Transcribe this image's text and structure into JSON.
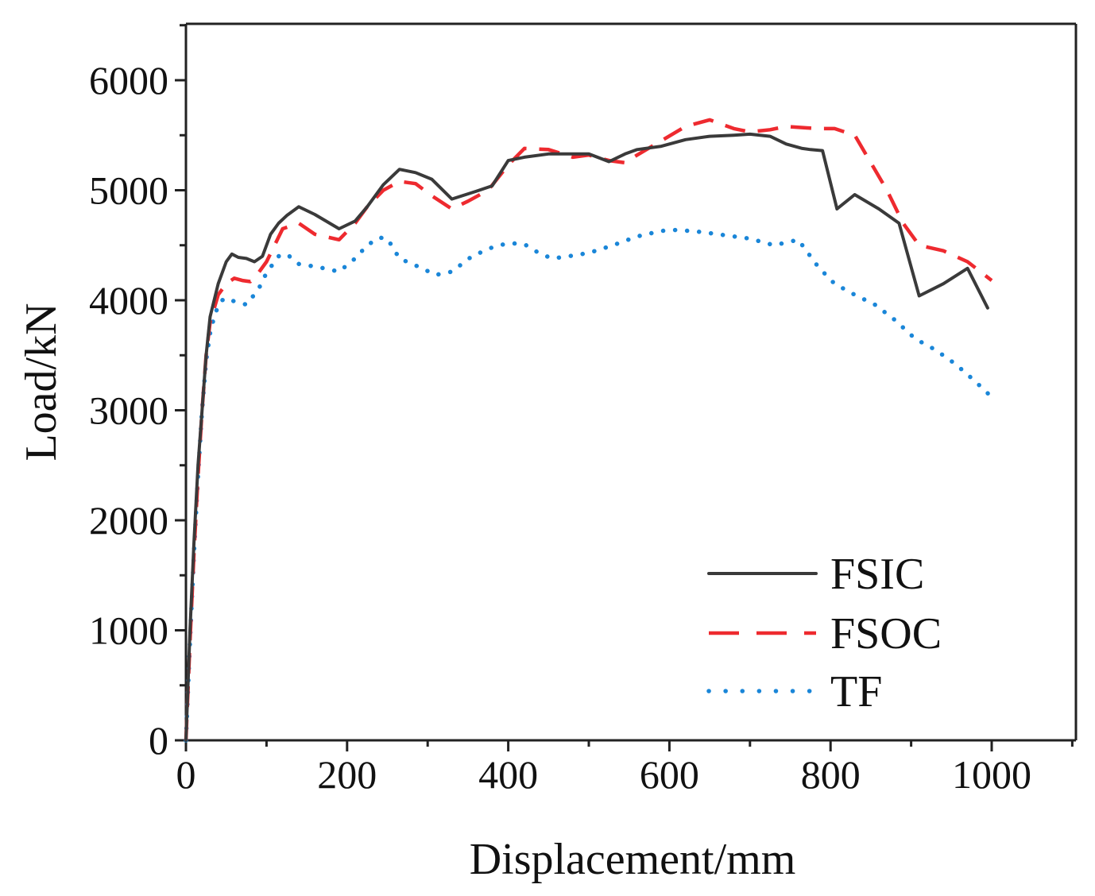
{
  "chart_data": {
    "type": "line",
    "title": "",
    "xlabel": "Displacement/mm",
    "ylabel": "Load/kN",
    "xlim": [
      0,
      1100
    ],
    "ylim": [
      0,
      6500
    ],
    "xticks": [
      0,
      200,
      400,
      600,
      800,
      1000
    ],
    "xtick_labels": [
      "0",
      "200",
      "400",
      "600",
      "800",
      "1000"
    ],
    "yticks": [
      0,
      1000,
      2000,
      3000,
      4000,
      5000,
      6000
    ],
    "ytick_labels": [
      "0",
      "1000",
      "2000",
      "3000",
      "4000",
      "5000",
      "6000"
    ],
    "grid": false,
    "legend_position": "bottom-right",
    "series": [
      {
        "name": "FSIC",
        "style": "solid",
        "color": "#3a3a3a",
        "x": [
          0,
          5,
          10,
          15,
          20,
          25,
          30,
          40,
          50,
          57,
          65,
          75,
          85,
          95,
          105,
          115,
          125,
          140,
          160,
          190,
          210,
          225,
          245,
          265,
          285,
          305,
          330,
          360,
          380,
          400,
          420,
          450,
          480,
          500,
          525,
          545,
          560,
          590,
          620,
          650,
          680,
          700,
          725,
          745,
          765,
          775,
          790,
          808,
          830,
          860,
          885,
          910,
          940,
          970,
          995
        ],
        "y": [
          0,
          1000,
          1800,
          2500,
          3000,
          3500,
          3850,
          4150,
          4350,
          4420,
          4390,
          4380,
          4350,
          4400,
          4600,
          4700,
          4770,
          4850,
          4780,
          4650,
          4720,
          4850,
          5050,
          5190,
          5160,
          5100,
          4920,
          4990,
          5040,
          5270,
          5300,
          5330,
          5330,
          5330,
          5260,
          5330,
          5370,
          5400,
          5460,
          5490,
          5500,
          5510,
          5490,
          5420,
          5380,
          5370,
          5360,
          4830,
          4960,
          4830,
          4700,
          4040,
          4150,
          4290,
          3930
        ]
      },
      {
        "name": "FSOC",
        "style": "dashed",
        "color": "#ee2a2f",
        "x": [
          0,
          5,
          10,
          15,
          20,
          25,
          30,
          40,
          50,
          60,
          70,
          80,
          90,
          100,
          120,
          140,
          160,
          190,
          210,
          225,
          245,
          265,
          285,
          305,
          330,
          350,
          375,
          400,
          420,
          450,
          480,
          500,
          525,
          545,
          560,
          590,
          620,
          650,
          680,
          700,
          725,
          745,
          765,
          785,
          805,
          830,
          850,
          870,
          890,
          910,
          940,
          970,
          1000
        ],
        "y": [
          0,
          900,
          1700,
          2400,
          3000,
          3500,
          3800,
          4050,
          4150,
          4200,
          4180,
          4170,
          4250,
          4350,
          4650,
          4700,
          4600,
          4550,
          4700,
          4850,
          5000,
          5080,
          5060,
          4950,
          4830,
          4900,
          5000,
          5230,
          5380,
          5370,
          5300,
          5320,
          5270,
          5250,
          5320,
          5450,
          5580,
          5640,
          5560,
          5530,
          5550,
          5580,
          5570,
          5560,
          5560,
          5500,
          5250,
          5000,
          4700,
          4500,
          4450,
          4350,
          4180
        ]
      },
      {
        "name": "TF",
        "style": "dotted",
        "color": "#1a86d8",
        "x": [
          0,
          5,
          10,
          15,
          20,
          25,
          30,
          35,
          40,
          45,
          50,
          60,
          75,
          90,
          100,
          115,
          125,
          140,
          165,
          190,
          210,
          225,
          240,
          250,
          265,
          290,
          310,
          330,
          355,
          380,
          400,
          420,
          440,
          455,
          475,
          500,
          530,
          560,
          590,
          610,
          640,
          670,
          700,
          730,
          760,
          785,
          805,
          830,
          855,
          880,
          905,
          930,
          955,
          980,
          1000
        ],
        "y": [
          0,
          900,
          1700,
          2400,
          3000,
          3450,
          3700,
          3850,
          3950,
          4000,
          4020,
          3990,
          3960,
          4100,
          4250,
          4400,
          4420,
          4330,
          4300,
          4260,
          4380,
          4500,
          4570,
          4560,
          4380,
          4300,
          4230,
          4260,
          4400,
          4480,
          4520,
          4510,
          4420,
          4380,
          4400,
          4430,
          4500,
          4580,
          4630,
          4640,
          4620,
          4590,
          4560,
          4500,
          4550,
          4300,
          4150,
          4050,
          3960,
          3820,
          3650,
          3550,
          3420,
          3260,
          3120
        ]
      }
    ]
  }
}
